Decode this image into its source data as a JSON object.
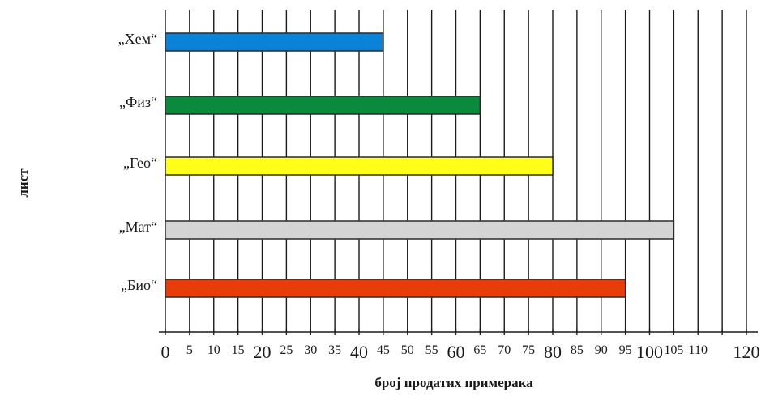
{
  "chart_data": {
    "type": "bar",
    "orientation": "horizontal",
    "categories": [
      "„Хем“",
      "„Физ“",
      "„Гео“",
      "„Мат“",
      "„Био“"
    ],
    "values": [
      45,
      65,
      80,
      105,
      95
    ],
    "colors": [
      "#0a82d8",
      "#0a8a3c",
      "#ffff19",
      "#d4d4d4",
      "#e83c0a"
    ],
    "xlabel": "број продатих примерака",
    "ylabel": "лист",
    "xlim": [
      0,
      120
    ],
    "xticks": [
      0,
      5,
      10,
      15,
      20,
      25,
      30,
      35,
      40,
      45,
      50,
      55,
      60,
      65,
      70,
      75,
      80,
      85,
      90,
      95,
      100,
      105,
      110,
      120
    ],
    "xticks_large": [
      0,
      20,
      40,
      60,
      80,
      100,
      120
    ],
    "gridlines": [
      0,
      5,
      10,
      15,
      20,
      25,
      30,
      35,
      40,
      45,
      50,
      55,
      60,
      65,
      70,
      75,
      80,
      85,
      90,
      95,
      100,
      105,
      110,
      115,
      120
    ],
    "grid": "vertical",
    "legend": "none"
  }
}
